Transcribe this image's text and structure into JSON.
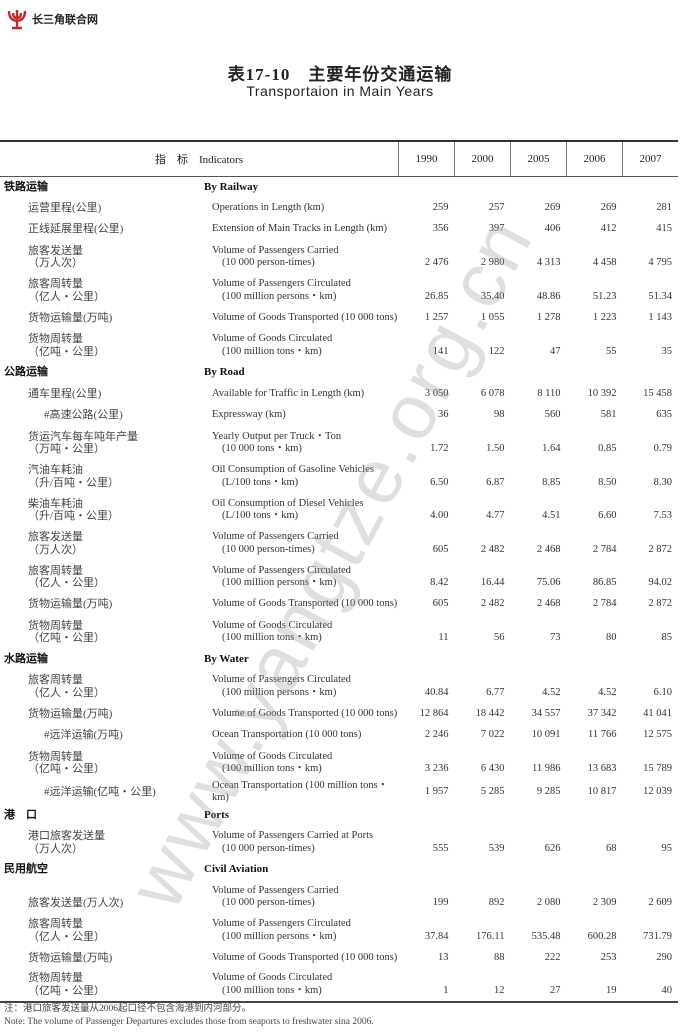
{
  "logo": {
    "text": "长三角联合网",
    "color": "#c0282d"
  },
  "title": {
    "cn": "表17-10　主要年份交通运输",
    "en": "Transportaion in Main Years"
  },
  "watermark": "www.yangtze.org.cn",
  "header": {
    "indicator": "指　标　Indicators",
    "years": [
      "1990",
      "2000",
      "2005",
      "2006",
      "2007"
    ]
  },
  "sections": [
    {
      "cn": "铁路运输",
      "en": "By Railway",
      "rows": [
        {
          "cn": [
            "运营里程(公里)"
          ],
          "en": [
            "Operations in Length (km)"
          ],
          "values": [
            "259",
            "257",
            "269",
            "269",
            "281"
          ]
        },
        {
          "cn": [
            "正线延展里程(公里)"
          ],
          "en": [
            "Extension of Main Tracks in Length (km)"
          ],
          "values": [
            "356",
            "397",
            "406",
            "412",
            "415"
          ]
        },
        {
          "cn": [
            "旅客发送量",
            "（万人次）"
          ],
          "en": [
            "Volume of Passengers Carried",
            "(10 000 person-times)"
          ],
          "values": [
            "2 476",
            "2 980",
            "4 313",
            "4 458",
            "4 795"
          ]
        },
        {
          "cn": [
            "旅客周转量",
            "（亿人・公里）"
          ],
          "en": [
            "Volume of Passengers Circulated",
            "(100 million persons・km)"
          ],
          "values": [
            "26.85",
            "35.40",
            "48.86",
            "51.23",
            "51.34"
          ]
        },
        {
          "cn": [
            "货物运输量(万吨)"
          ],
          "en": [
            "Volume of Goods Transported (10 000 tons)"
          ],
          "values": [
            "1 257",
            "1 055",
            "1 278",
            "1 223",
            "1 143"
          ]
        },
        {
          "cn": [
            "货物周转量",
            "（亿吨・公里）"
          ],
          "en": [
            "Volume of Goods Circulated",
            "(100 million tons・km)"
          ],
          "values": [
            "141",
            "122",
            "47",
            "55",
            "35"
          ]
        }
      ]
    },
    {
      "cn": "公路运输",
      "en": "By Road",
      "rows": [
        {
          "cn": [
            "通车里程(公里)"
          ],
          "en": [
            "Available for Traffic in Length (km)"
          ],
          "values": [
            "3 050",
            "6 078",
            "8 110",
            "10 392",
            "15 458"
          ]
        },
        {
          "cn": [
            "#高速公路(公里)"
          ],
          "indent": true,
          "en": [
            "Expressway (km)"
          ],
          "values": [
            "36",
            "98",
            "560",
            "581",
            "635"
          ]
        },
        {
          "cn": [
            "货运汽车每车吨年产量",
            "（万吨・公里）"
          ],
          "en": [
            "Yearly Output per Truck・Ton",
            "(10 000 tons・km)"
          ],
          "values": [
            "1.72",
            "1.50",
            "1.64",
            "0.85",
            "0.79"
          ]
        },
        {
          "cn": [
            "汽油车耗油",
            "（升/百吨・公里）"
          ],
          "en": [
            "Oil Consumption of Gasoline Vehicles",
            "(L/100 tons・km)"
          ],
          "values": [
            "6.50",
            "6.87",
            "8.85",
            "8.50",
            "8.30"
          ]
        },
        {
          "cn": [
            "柴油车耗油",
            "（升/百吨・公里）"
          ],
          "en": [
            "Oil Consumption of Diesel Vehicles",
            "(L/100 tons・km)"
          ],
          "values": [
            "4.00",
            "4.77",
            "4.51",
            "6.60",
            "7.53"
          ]
        },
        {
          "cn": [
            "旅客发送量",
            "（万人次）"
          ],
          "en": [
            "Volume of Passengers Carried",
            "(10 000 person-times)"
          ],
          "values": [
            "605",
            "2 482",
            "2 468",
            "2 784",
            "2 872"
          ]
        },
        {
          "cn": [
            "旅客周转量",
            "（亿人・公里）"
          ],
          "en": [
            "Volume of Passengers Circulated",
            "(100 million persons・km)"
          ],
          "values": [
            "8.42",
            "16.44",
            "75.06",
            "86.85",
            "94.02"
          ]
        },
        {
          "cn": [
            "货物运输量(万吨)"
          ],
          "en": [
            "Volume of Goods Transported (10 000 tons)"
          ],
          "values": [
            "605",
            "2 482",
            "2 468",
            "2 784",
            "2 872"
          ]
        },
        {
          "cn": [
            "货物周转量",
            "（亿吨・公里）"
          ],
          "en": [
            "Volume of Goods Circulated",
            "(100 million tons・km)"
          ],
          "values": [
            "11",
            "56",
            "73",
            "80",
            "85"
          ]
        }
      ]
    },
    {
      "cn": "水路运输",
      "en": "By Water",
      "rows": [
        {
          "cn": [
            "旅客周转量",
            "（亿人・公里）"
          ],
          "en": [
            "Volume of Passengers Circulated",
            "(100 million persons・km)"
          ],
          "values": [
            "40.84",
            "6.77",
            "4.52",
            "4.52",
            "6.10"
          ]
        },
        {
          "cn": [
            "货物运输量(万吨)"
          ],
          "en": [
            "Volume of Goods Transported (10 000 tons)"
          ],
          "values": [
            "12 864",
            "18 442",
            "34 557",
            "37 342",
            "41 041"
          ]
        },
        {
          "cn": [
            "#远洋运输(万吨)"
          ],
          "indent": true,
          "en": [
            "Ocean Transportation (10 000 tons)"
          ],
          "values": [
            "2 246",
            "7 022",
            "10 091",
            "11 766",
            "12 575"
          ]
        },
        {
          "cn": [
            "货物周转量",
            "（亿吨・公里）"
          ],
          "en": [
            "Volume of Goods Circulated",
            "(100 million tons・km)"
          ],
          "values": [
            "3 236",
            "6 430",
            "11 986",
            "13 683",
            "15 789"
          ]
        },
        {
          "cn": [
            "#远洋运输(亿吨・公里)"
          ],
          "indent": true,
          "en": [
            "Ocean Transportation (100 million tons・km)"
          ],
          "values": [
            "1 957",
            "5 285",
            "9 285",
            "10 817",
            "12 039"
          ]
        }
      ]
    },
    {
      "cn": "港　口",
      "en": "Ports",
      "rows": [
        {
          "cn": [
            "港口旅客发送量",
            "（万人次）"
          ],
          "en": [
            "Volume of Passengers Carried at Ports",
            "(10 000 person-times)"
          ],
          "values": [
            "555",
            "539",
            "626",
            "68",
            "95"
          ]
        }
      ]
    },
    {
      "cn": "民用航空",
      "en": "Civil Aviation",
      "rows": [
        {
          "cn": [
            "旅客发送量(万人次)"
          ],
          "en": [
            "Volume of Passengers Carried",
            "(10 000 person-times)"
          ],
          "values": [
            "199",
            "892",
            "2 080",
            "2 309",
            "2 609"
          ]
        },
        {
          "cn": [
            "旅客周转量",
            "（亿人・公里）"
          ],
          "en": [
            "Volume of Passengers Circulated",
            "(100 million persons・km)"
          ],
          "values": [
            "37.84",
            "176.11",
            "535.48",
            "600.28",
            "731.79"
          ]
        },
        {
          "cn": [
            "货物运输量(万吨)"
          ],
          "en": [
            "Volume of Goods Transported (10 000 tons)"
          ],
          "values": [
            "13",
            "88",
            "222",
            "253",
            "290"
          ]
        },
        {
          "cn": [
            "货物周转量",
            "（亿吨・公里）"
          ],
          "en": [
            "Volume of Goods Circulated",
            "(100 million tons・km)"
          ],
          "values": [
            "1",
            "12",
            "27",
            "19",
            "40"
          ]
        }
      ]
    }
  ],
  "notes": {
    "cn": "注：港口旅客发送量从2006起口径不包含海港到内河部分。",
    "en": "Note: The volume of Passenger Departures excludes those from seaports to freshwater sina 2006."
  }
}
